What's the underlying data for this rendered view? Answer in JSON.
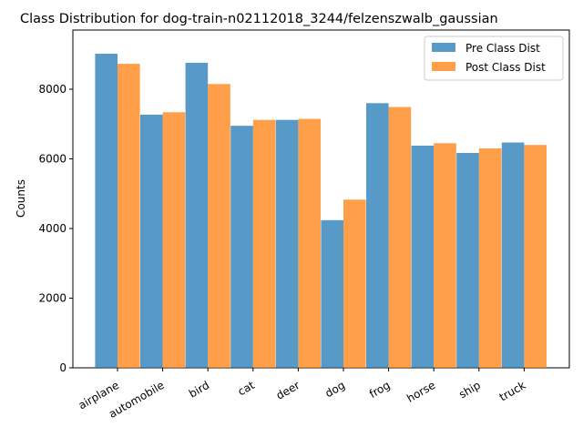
{
  "chart_data": {
    "type": "bar",
    "title": "Class Distribution for dog-train-n02112018_3244/felzenszwalb_gaussian",
    "xlabel": "",
    "ylabel": "Counts",
    "categories": [
      "airplane",
      "automobile",
      "bird",
      "cat",
      "deer",
      "dog",
      "frog",
      "horse",
      "ship",
      "truck"
    ],
    "series": [
      {
        "name": "Pre Class Dist",
        "color": "#1f77b4",
        "values": [
          9020,
          7270,
          8760,
          6950,
          7120,
          4240,
          7600,
          6380,
          6170,
          6470
        ]
      },
      {
        "name": "Post Class Dist",
        "color": "#ff7f0e",
        "values": [
          8730,
          7340,
          8150,
          7120,
          7150,
          4830,
          7490,
          6450,
          6300,
          6400
        ]
      }
    ],
    "ylim": [
      0,
      9700
    ],
    "yticks": [
      0,
      2000,
      4000,
      6000,
      8000
    ],
    "grid": false,
    "legend_position": "top-right",
    "bar_opacity": 0.75
  }
}
